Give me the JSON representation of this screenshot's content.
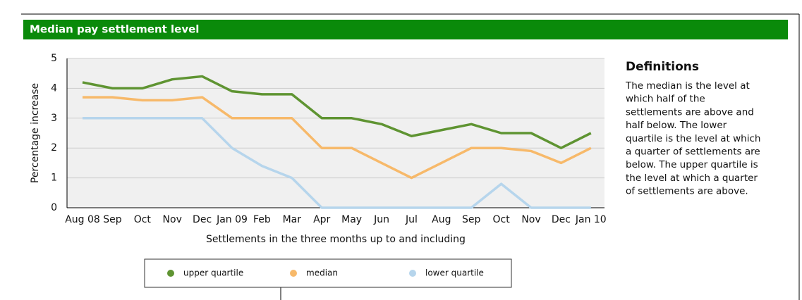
{
  "header": {
    "title": "Median pay settlement level"
  },
  "chart_data": {
    "type": "line",
    "x_label": "Settlements in the three months up to and including",
    "y_label": "Percentage increase",
    "categories": [
      "Aug 08",
      "Sep",
      "Oct",
      "Nov",
      "Dec",
      "Jan 09",
      "Feb",
      "Mar",
      "Apr",
      "May",
      "Jun",
      "Jul",
      "Aug",
      "Sep",
      "Oct",
      "Nov",
      "Dec",
      "Jan 10"
    ],
    "series": [
      {
        "name": "upper quartile",
        "color": "#5f9432",
        "values": [
          4.2,
          4.0,
          4.0,
          4.3,
          4.4,
          3.9,
          3.8,
          3.8,
          3.0,
          3.0,
          2.8,
          2.4,
          2.6,
          2.8,
          2.5,
          2.5,
          2.0,
          2.5
        ]
      },
      {
        "name": "median",
        "color": "#f7b96a",
        "values": [
          3.7,
          3.7,
          3.6,
          3.6,
          3.7,
          3.0,
          3.0,
          3.0,
          2.0,
          2.0,
          1.5,
          1.0,
          1.5,
          2.0,
          2.0,
          1.9,
          1.5,
          2.0
        ]
      },
      {
        "name": "lower quartile",
        "color": "#b6d5ec",
        "values": [
          3,
          3,
          3,
          3,
          3,
          2.0,
          1.4,
          1.0,
          0,
          0,
          0,
          0,
          0,
          0,
          0.8,
          0,
          0,
          0
        ]
      }
    ],
    "ylim": [
      0,
      5
    ],
    "yticks": [
      0,
      1,
      2,
      3,
      4,
      5
    ],
    "grid": true,
    "legend": "bottom"
  },
  "definitions": {
    "title": "Definitions",
    "lines": [
      "The median is the level at",
      "which half of the",
      "settlements are above and",
      "half below. The lower",
      "quartile is the level at which",
      "a quarter of settlements are",
      "below. The upper quartile is",
      "the level at which a quarter",
      "of settlements are above."
    ]
  }
}
